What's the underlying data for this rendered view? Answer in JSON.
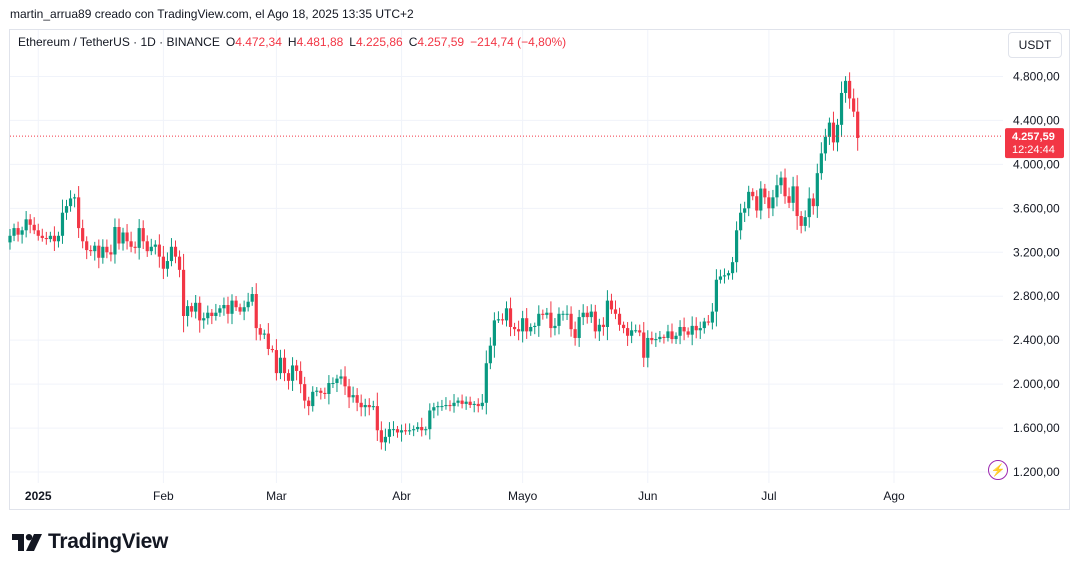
{
  "caption": "martin_arrua89 creado con TradingView.com, el Ago 18, 2025 13:35 UTC+2",
  "legend": {
    "symbol": "Ethereum / TetherUS · 1D · BINANCE",
    "open_label": "O",
    "open": "4.472,34",
    "high_label": "H",
    "high": "4.481,88",
    "low_label": "L",
    "low": "4.225,86",
    "close_label": "C",
    "close": "4.257,59",
    "change": "−214,74 (−4,80%)"
  },
  "currency": "USDT",
  "price_badge": {
    "price": "4.257,59",
    "countdown": "12:24:44"
  },
  "brand": {
    "name": "TradingView",
    "logo_icon": "tradingview-logo-icon"
  },
  "colors": {
    "up": "#089981",
    "down": "#f23645",
    "grid": "#f0f3fa",
    "axis_text": "#131722"
  },
  "chart_data": {
    "type": "candlestick",
    "y_ticks": [
      1200,
      1600,
      2000,
      2400,
      2800,
      3200,
      3600,
      4000,
      4400,
      4800
    ],
    "y_tick_labels": [
      "1.200,00",
      "1.600,00",
      "2.000,00",
      "2.400,00",
      "2.800,00",
      "3.200,00",
      "3.600,00",
      "4.000,00",
      "4.400,00",
      "4.800,00"
    ],
    "ylim": [
      1100,
      4950
    ],
    "x_tick_labels": [
      {
        "date": "2025-01-01",
        "label": "2025"
      },
      {
        "date": "2025-02-01",
        "label": "Feb"
      },
      {
        "date": "2025-03-01",
        "label": "Mar"
      },
      {
        "date": "2025-04-01",
        "label": "Abr"
      },
      {
        "date": "2025-05-01",
        "label": "Mayo"
      },
      {
        "date": "2025-06-01",
        "label": "Jun"
      },
      {
        "date": "2025-07-01",
        "label": "Jul"
      },
      {
        "date": "2025-08-01",
        "label": "Ago"
      }
    ],
    "x_start": "2024-12-25",
    "x_end": "2025-08-28",
    "first_candle": "2024-12-25",
    "current_price": 4257.59,
    "closes": [
      3350,
      3420,
      3360,
      3400,
      3500,
      3450,
      3400,
      3350,
      3330,
      3320,
      3350,
      3300,
      3350,
      3560,
      3620,
      3690,
      3700,
      3420,
      3300,
      3220,
      3210,
      3260,
      3150,
      3250,
      3200,
      3180,
      3430,
      3280,
      3380,
      3300,
      3250,
      3240,
      3420,
      3300,
      3210,
      3250,
      3270,
      3160,
      3050,
      3120,
      3250,
      3160,
      3040,
      2620,
      2710,
      2660,
      2740,
      2580,
      2600,
      2650,
      2620,
      2650,
      2690,
      2720,
      2640,
      2760,
      2700,
      2660,
      2700,
      2750,
      2820,
      2510,
      2450,
      2460,
      2320,
      2310,
      2100,
      2240,
      2100,
      2030,
      2170,
      2120,
      2000,
      1850,
      1800,
      1930,
      1940,
      1920,
      1910,
      2010,
      2010,
      2050,
      2070,
      1980,
      1880,
      1900,
      1830,
      1790,
      1810,
      1790,
      1800,
      1580,
      1470,
      1520,
      1590,
      1590,
      1560,
      1580,
      1570,
      1580,
      1590,
      1610,
      1580,
      1590,
      1760,
      1790,
      1800,
      1800,
      1810,
      1800,
      1830,
      1850,
      1820,
      1840,
      1810,
      1820,
      1800,
      1830,
      2190,
      2350,
      2580,
      2590,
      2580,
      2690,
      2520,
      2500,
      2480,
      2600,
      2480,
      2520,
      2530,
      2640,
      2630,
      2650,
      2510,
      2530,
      2640,
      2640,
      2640,
      2500,
      2420,
      2610,
      2650,
      2610,
      2660,
      2480,
      2540,
      2520,
      2760,
      2680,
      2640,
      2540,
      2510,
      2440,
      2490,
      2490,
      2470,
      2240,
      2420,
      2400,
      2410,
      2430,
      2420,
      2480,
      2410,
      2440,
      2520,
      2480,
      2450,
      2530,
      2490,
      2510,
      2570,
      2560,
      2660,
      2950,
      2980,
      2990,
      3010,
      3110,
      3400,
      3560,
      3600,
      3750,
      3710,
      3580,
      3780,
      3700,
      3600,
      3700,
      3810,
      3880,
      3710,
      3650,
      3800,
      3530,
      3440,
      3520,
      3690,
      3620,
      3920,
      4100,
      4250,
      4380,
      4200,
      4360,
      4650,
      4760,
      4600,
      4480,
      4240
    ]
  }
}
